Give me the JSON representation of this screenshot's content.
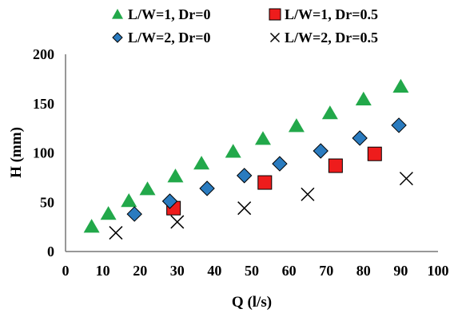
{
  "chart_data": {
    "type": "scatter",
    "xlabel": "Q (l/s)",
    "ylabel": "H (mm)",
    "xlim": [
      0,
      100
    ],
    "ylim": [
      0,
      200
    ],
    "x_ticks": [
      "0",
      "10",
      "20",
      "30",
      "40",
      "50",
      "60",
      "70",
      "80",
      "90",
      "100"
    ],
    "y_ticks": [
      "0",
      "50",
      "100",
      "150",
      "200"
    ],
    "grid": false,
    "legend_position": "top",
    "series": [
      {
        "name": "L/W=1, Dr=0",
        "marker": "triangle",
        "color": "#22a84a",
        "points": [
          [
            7,
            25
          ],
          [
            11.5,
            38
          ],
          [
            17,
            51
          ],
          [
            22,
            63
          ],
          [
            29.5,
            76
          ],
          [
            36.5,
            89
          ],
          [
            45,
            101
          ],
          [
            53,
            114
          ],
          [
            62,
            127
          ],
          [
            71,
            140
          ],
          [
            80,
            154
          ],
          [
            90,
            167
          ]
        ]
      },
      {
        "name": "L/W=1, Dr=0.5",
        "marker": "square",
        "color": "#ee1c1c",
        "points": [
          [
            29,
            44
          ],
          [
            53.5,
            70
          ],
          [
            72.5,
            87
          ],
          [
            83,
            99
          ]
        ]
      },
      {
        "name": "L/W=2, Dr=0",
        "marker": "diamond",
        "color": "#2a7bbf",
        "points": [
          [
            18.5,
            38
          ],
          [
            28,
            51
          ],
          [
            38,
            64
          ],
          [
            48,
            77
          ],
          [
            57.5,
            89
          ],
          [
            68.5,
            102
          ],
          [
            79,
            115
          ],
          [
            89.5,
            128
          ]
        ]
      },
      {
        "name": "L/W=2, Dr=0.5",
        "marker": "cross",
        "color": "#000000",
        "points": [
          [
            13.5,
            19
          ],
          [
            30,
            30
          ],
          [
            48,
            44
          ],
          [
            65,
            58
          ],
          [
            91.5,
            74
          ]
        ]
      }
    ]
  }
}
